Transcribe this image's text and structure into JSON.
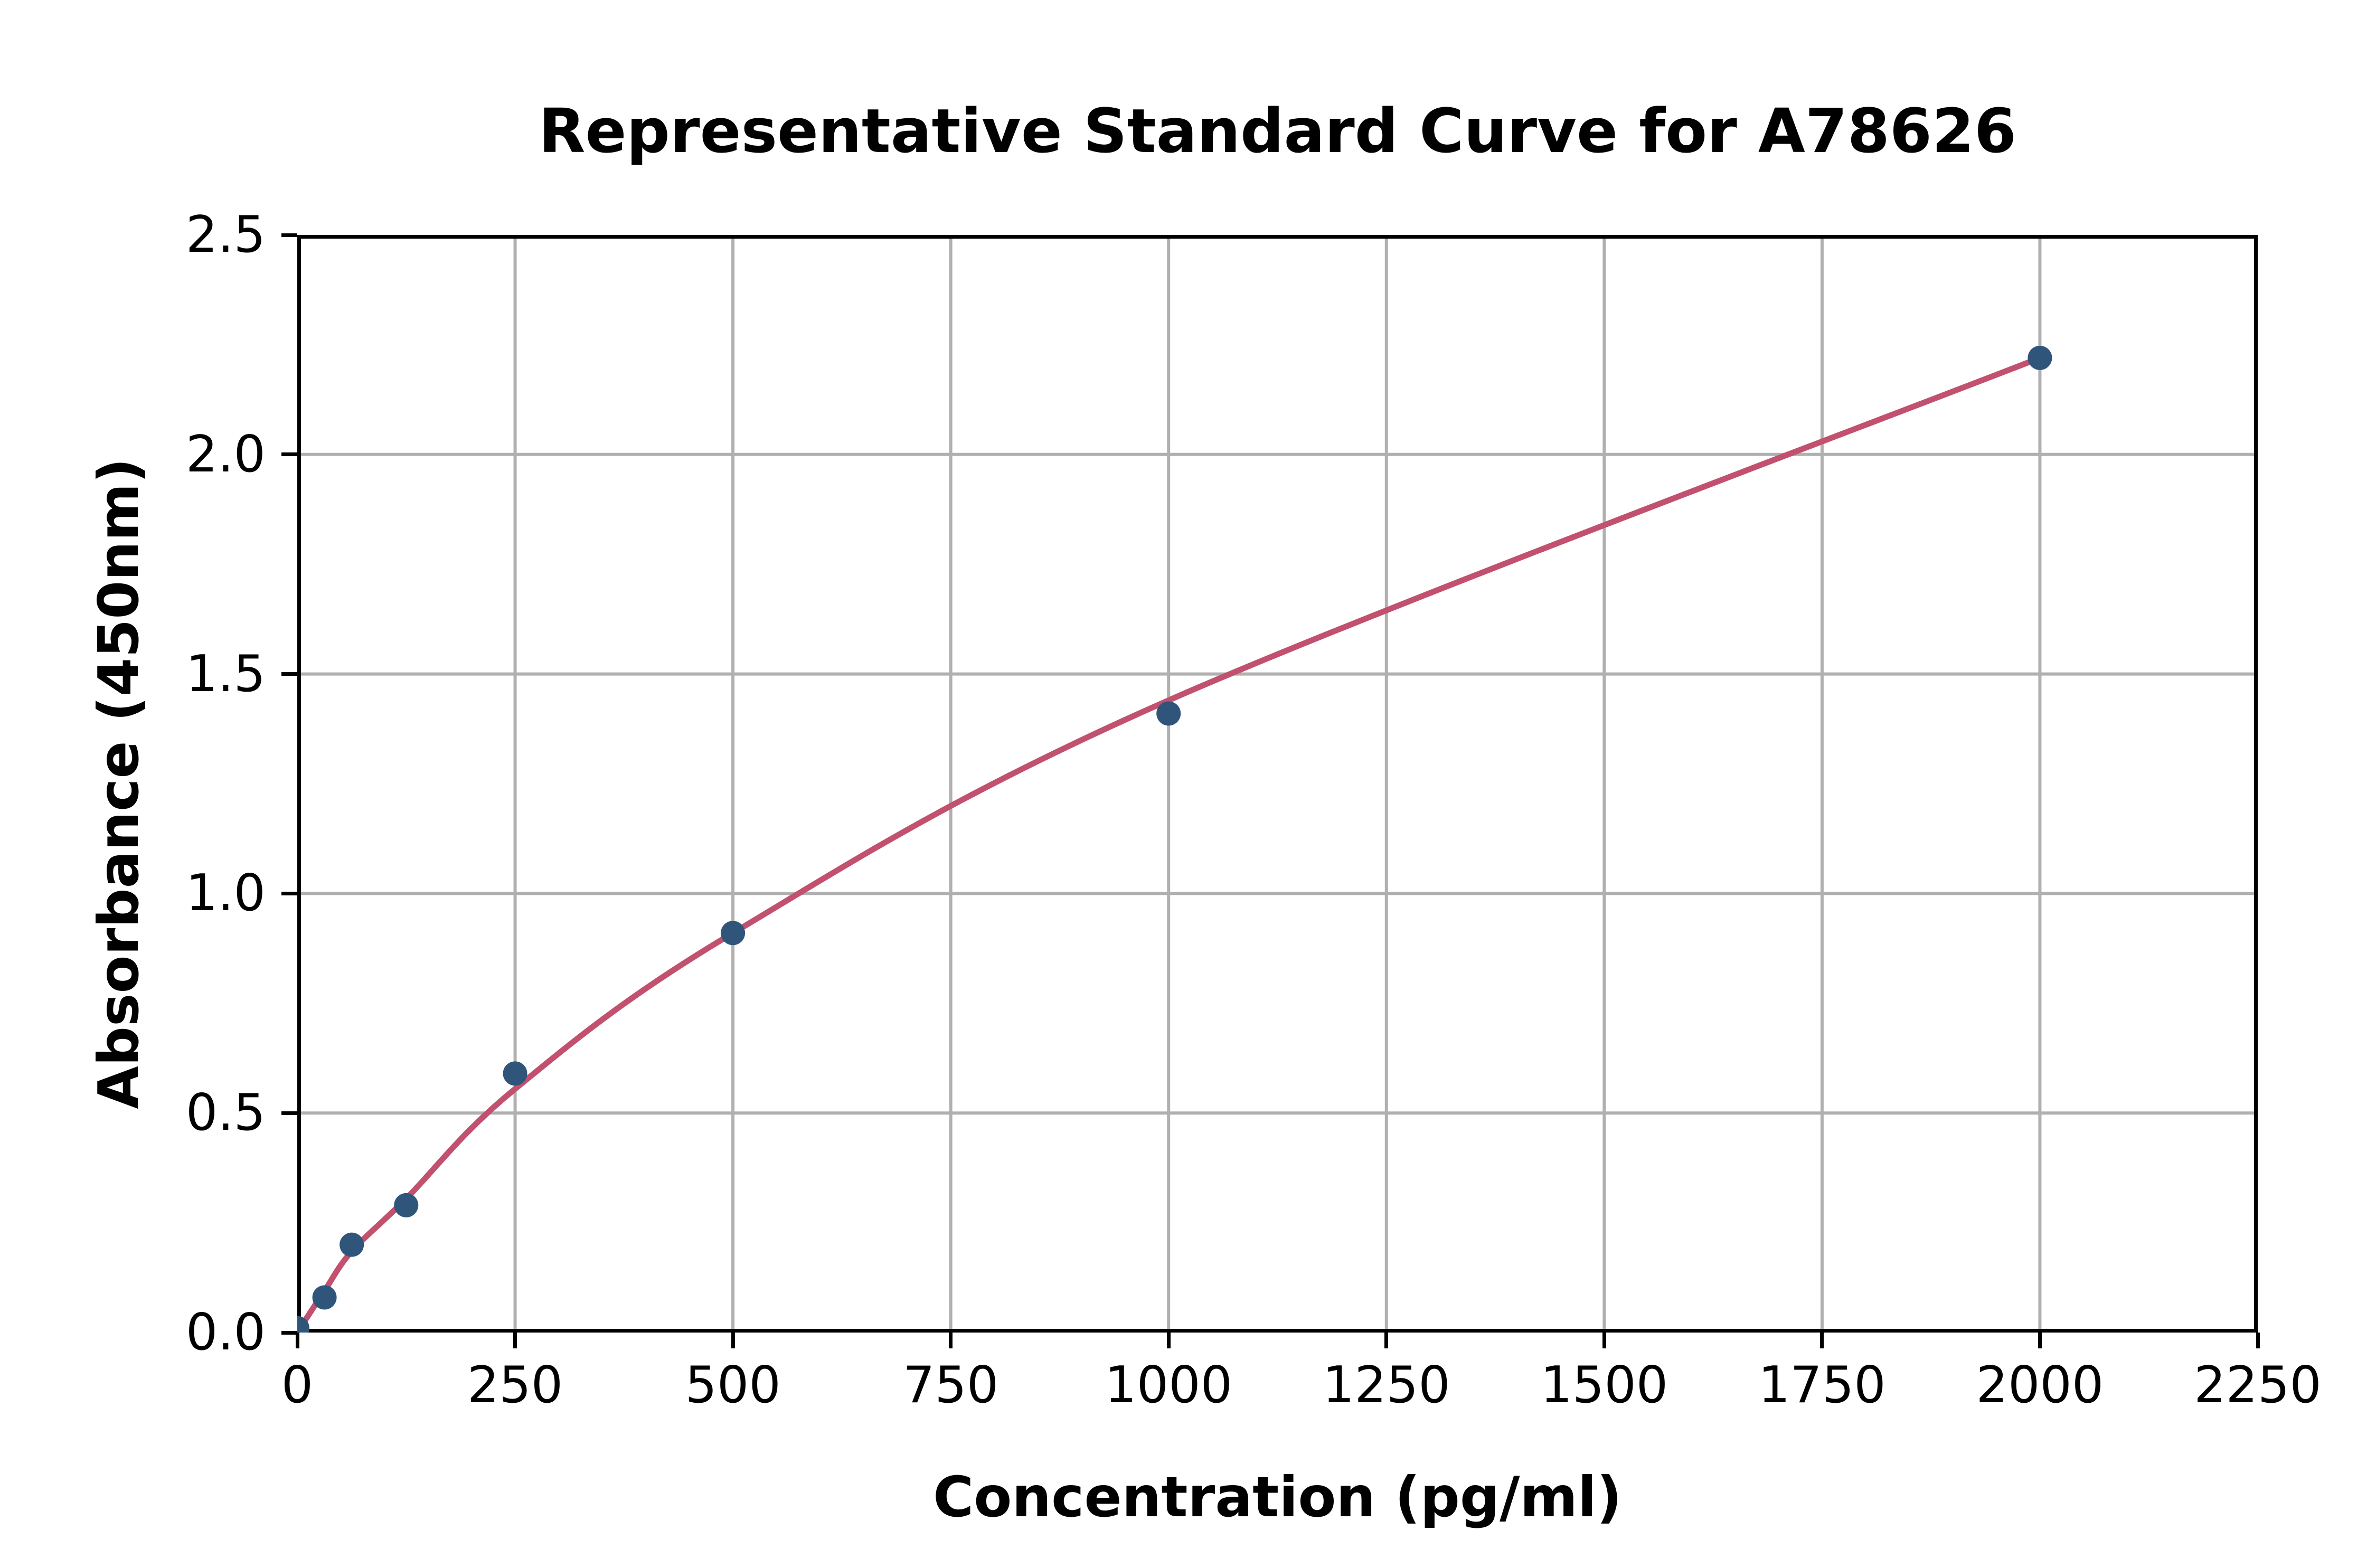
{
  "title": "Representative Standard Curve for A78626",
  "colors": {
    "background": "#ffffff",
    "curve": "#c1516f",
    "point": "#2f567a",
    "grid": "#b0b0b0",
    "axis": "#000000",
    "text": "#000000"
  },
  "chart_data": {
    "type": "scatter",
    "title": "Representative Standard Curve for A78626",
    "xlabel": "Concentration (pg/ml)",
    "ylabel": "Absorbance (450nm)",
    "xlim": [
      0,
      2250
    ],
    "ylim": [
      0,
      2.5
    ],
    "xticks": [
      "0",
      "250",
      "500",
      "750",
      "1000",
      "1250",
      "1500",
      "1750",
      "2000",
      "2250"
    ],
    "yticks": [
      "0.0",
      "0.5",
      "1.0",
      "1.5",
      "2.0",
      "2.5"
    ],
    "grid": true,
    "legend_position": "none",
    "series": [
      {
        "name": "standard-points",
        "type": "scatter",
        "x": [
          0,
          31.25,
          62.5,
          125,
          250,
          500,
          1000,
          2000
        ],
        "y": [
          0.01,
          0.08,
          0.2,
          0.29,
          0.59,
          0.91,
          1.41,
          2.22
        ]
      },
      {
        "name": "fitted-curve",
        "type": "line",
        "x": [
          0,
          31.25,
          62.5,
          125,
          250,
          500,
          1000,
          2000
        ],
        "y": [
          0.0,
          0.095,
          0.185,
          0.305,
          0.555,
          0.91,
          1.44,
          2.22
        ]
      }
    ]
  }
}
